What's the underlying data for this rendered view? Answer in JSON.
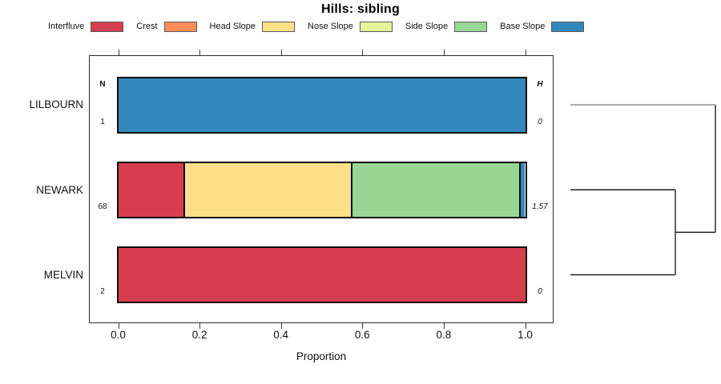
{
  "title": "Hills: sibling",
  "axis": {
    "x_label": "Proportion",
    "x_ticks": [
      {
        "label": "0.0",
        "value": 0.0
      },
      {
        "label": "0.2",
        "value": 0.2
      },
      {
        "label": "0.4",
        "value": 0.4
      },
      {
        "label": "0.6",
        "value": 0.6
      },
      {
        "label": "0.8",
        "value": 0.8
      },
      {
        "label": "1.0",
        "value": 1.0
      }
    ]
  },
  "headers": {
    "n": "N",
    "h": "H"
  },
  "legend": {
    "items": [
      {
        "label": "Interfluve",
        "color": "#D53E4F"
      },
      {
        "label": "Crest",
        "color": "#FC8D59"
      },
      {
        "label": "Head Slope",
        "color": "#FEE08B"
      },
      {
        "label": "Nose Slope",
        "color": "#E6F598"
      },
      {
        "label": "Side Slope",
        "color": "#99D594"
      },
      {
        "label": "Base Slope",
        "color": "#3288BD"
      }
    ]
  },
  "chart_data": {
    "type": "bar",
    "subtype": "horizontal-stacked-proportion",
    "title": "Hills: sibling",
    "xlabel": "Proportion",
    "xlim": [
      0.0,
      1.0
    ],
    "grid": false,
    "legend_position": "top",
    "segment_classes": [
      "Interfluve",
      "Crest",
      "Head Slope",
      "Nose Slope",
      "Side Slope",
      "Base Slope"
    ],
    "segment_colors": [
      "#D53E4F",
      "#FC8D59",
      "#FEE08B",
      "#E6F598",
      "#99D594",
      "#3288BD"
    ],
    "categories": [
      "LILBOURN",
      "NEWARK",
      "MELVIN"
    ],
    "rows": [
      {
        "name": "LILBOURN",
        "n": "1",
        "h": "0",
        "segments": [
          {
            "class": "Base Slope",
            "color": "#3288BD",
            "value": 1.0
          }
        ]
      },
      {
        "name": "NEWARK",
        "n": "68",
        "h": "1.57",
        "segments": [
          {
            "class": "Interfluve",
            "color": "#D53E4F",
            "value": 0.161
          },
          {
            "class": "Head Slope",
            "color": "#FEE08B",
            "value": 0.411
          },
          {
            "class": "Side Slope",
            "color": "#99D594",
            "value": 0.413
          },
          {
            "class": "Base Slope",
            "color": "#3288BD",
            "value": 0.015
          }
        ]
      },
      {
        "name": "MELVIN",
        "n": "2",
        "h": "0",
        "segments": [
          {
            "class": "Interfluve",
            "color": "#D53E4F",
            "value": 1.0
          }
        ]
      }
    ],
    "dendrogram": {
      "description": "right-side cluster tree; x is merge height fraction of panel, y in row units (0=LILBOURN,1=NEWARK,2=MELVIN)",
      "merge_order": [
        [
          "NEWARK",
          "MELVIN"
        ],
        [
          "LILBOURN",
          "(NEWARK,MELVIN)"
        ]
      ],
      "segments": [
        {
          "x1": 0,
          "y1": 0,
          "x2": 1,
          "y2": 0,
          "color": "#8f8f8f"
        },
        {
          "x1": 0,
          "y1": 1,
          "x2": 0.724,
          "y2": 1,
          "color": "#1f1f1f"
        },
        {
          "x1": 0,
          "y1": 2,
          "x2": 0.724,
          "y2": 2,
          "color": "#1f1f1f"
        },
        {
          "x1": 0.724,
          "y1": 1,
          "x2": 0.724,
          "y2": 2,
          "color": "#1f1f1f"
        },
        {
          "x1": 0.724,
          "y1": 1.5,
          "x2": 1,
          "y2": 1.5,
          "color": "#1f1f1f"
        },
        {
          "x1": 1,
          "y1": 0,
          "x2": 1,
          "y2": 1.5,
          "color": "#1f1f1f"
        }
      ]
    }
  }
}
